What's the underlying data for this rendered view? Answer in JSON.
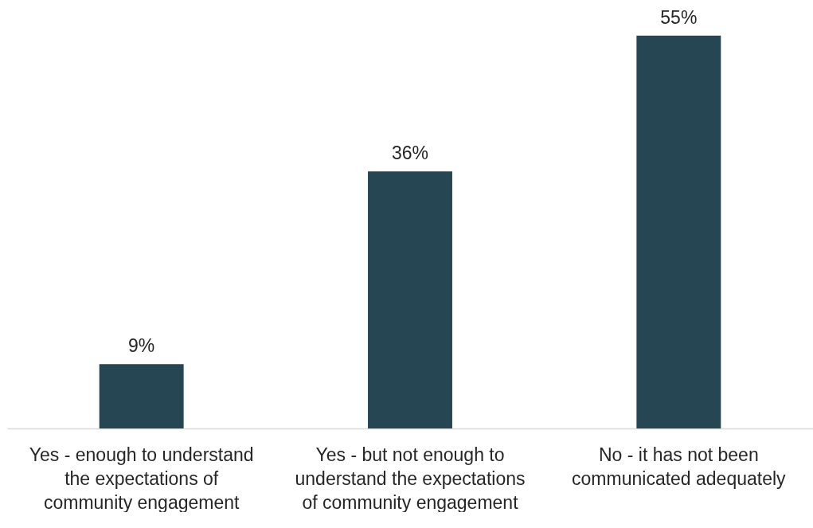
{
  "chart_data": {
    "type": "bar",
    "categories": [
      "Yes - enough to understand\nthe expectations of\ncommunity engagement",
      "Yes - but not enough to\nunderstand the expectations\nof community engagement",
      "No - it has not been\ncommunicated adequately"
    ],
    "values": [
      9,
      36,
      55
    ],
    "color": "#264653",
    "value_labels": [
      "9%",
      "36%",
      "55%"
    ],
    "ylim": [
      0,
      60
    ]
  }
}
